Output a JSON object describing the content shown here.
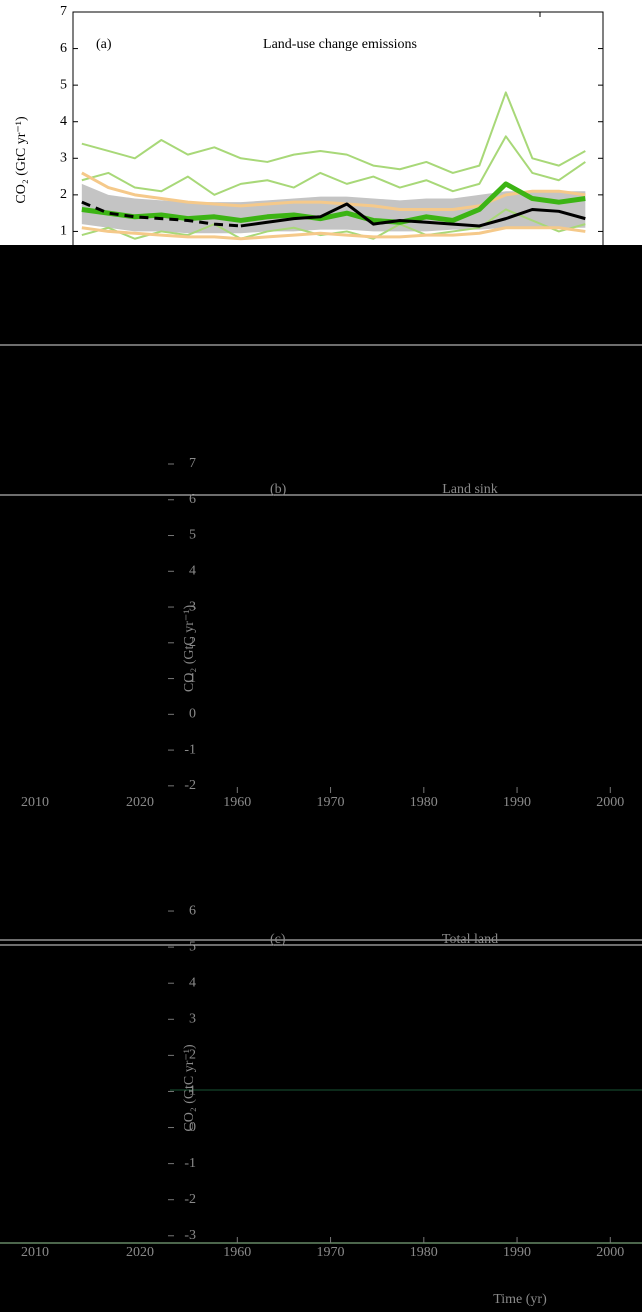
{
  "chart_data": [
    {
      "type": "line",
      "label": "(a)",
      "title": "Land-use change emissions",
      "ylabel": "CO₂ (GtC yr⁻¹)",
      "x": [
        1960,
        1963,
        1966,
        1969,
        1972,
        1975,
        1978,
        1981,
        1984,
        1987,
        1990,
        1993,
        1996,
        1999,
        2002,
        2005,
        2008,
        2011,
        2014,
        2017
      ],
      "xlim": [
        1959,
        2019
      ],
      "ylim": [
        0,
        7
      ],
      "yticks": [
        1,
        2,
        3,
        4,
        5,
        6,
        7
      ],
      "band": {
        "color": "#c4c4c4",
        "lower": [
          1.2,
          1.1,
          1.0,
          1.0,
          0.95,
          0.95,
          0.95,
          1.0,
          1.0,
          1.05,
          1.05,
          1.0,
          1.0,
          1.0,
          1.05,
          1.05,
          1.1,
          1.1,
          1.1,
          1.1
        ],
        "upper": [
          2.3,
          2.0,
          1.9,
          1.85,
          1.8,
          1.8,
          1.8,
          1.85,
          1.9,
          1.95,
          1.95,
          1.9,
          1.85,
          1.9,
          1.9,
          2.0,
          2.1,
          2.1,
          2.1,
          2.1
        ]
      },
      "series": [
        {
          "color": "#a8d878",
          "width": 2,
          "values": [
            3.4,
            3.2,
            3.0,
            3.5,
            3.1,
            3.3,
            3.0,
            2.9,
            3.1,
            3.2,
            3.1,
            2.8,
            2.7,
            2.9,
            2.6,
            2.8,
            4.8,
            3.0,
            2.8,
            3.2
          ]
        },
        {
          "color": "#a8d878",
          "width": 2,
          "values": [
            2.4,
            2.6,
            2.2,
            2.1,
            2.5,
            2.0,
            2.3,
            2.4,
            2.2,
            2.6,
            2.3,
            2.5,
            2.2,
            2.4,
            2.1,
            2.3,
            3.6,
            2.6,
            2.4,
            2.9
          ]
        },
        {
          "color": "#a8d878",
          "width": 2,
          "values": [
            0.9,
            1.1,
            0.8,
            1.0,
            0.9,
            1.2,
            0.8,
            1.0,
            1.1,
            0.9,
            1.0,
            0.8,
            1.2,
            0.9,
            1.0,
            1.1,
            1.6,
            1.3,
            1.0,
            1.2
          ]
        },
        {
          "color": "#f5c98a",
          "width": 3,
          "values": [
            2.6,
            2.2,
            2.0,
            1.9,
            1.8,
            1.75,
            1.7,
            1.75,
            1.8,
            1.8,
            1.75,
            1.7,
            1.6,
            1.6,
            1.6,
            1.7,
            2.0,
            2.1,
            2.1,
            2.0
          ]
        },
        {
          "color": "#f5c98a",
          "width": 3,
          "values": [
            1.1,
            1.0,
            0.95,
            0.9,
            0.85,
            0.85,
            0.8,
            0.85,
            0.9,
            0.95,
            0.9,
            0.85,
            0.85,
            0.9,
            0.9,
            0.95,
            1.1,
            1.1,
            1.1,
            1.0
          ]
        },
        {
          "color": "#3cb414",
          "width": 5,
          "values": [
            1.6,
            1.5,
            1.4,
            1.45,
            1.35,
            1.4,
            1.3,
            1.4,
            1.45,
            1.35,
            1.5,
            1.3,
            1.25,
            1.4,
            1.3,
            1.6,
            2.3,
            1.9,
            1.8,
            1.9
          ]
        },
        {
          "color": "#000000",
          "width": 3,
          "dash": true,
          "values": [
            1.8,
            1.5,
            1.4,
            1.35,
            1.3,
            1.2,
            1.15,
            null,
            null,
            null,
            null,
            null,
            null,
            null,
            null,
            null,
            null,
            null,
            null,
            null
          ]
        },
        {
          "color": "#000000",
          "width": 3,
          "values": [
            null,
            null,
            null,
            null,
            null,
            null,
            1.15,
            1.25,
            1.35,
            1.4,
            1.75,
            1.2,
            1.3,
            1.25,
            1.2,
            1.15,
            1.35,
            1.6,
            1.55,
            1.35
          ]
        }
      ]
    },
    {
      "type": "frame",
      "label": "(b)",
      "title": "Land sink",
      "ylabel": "CO₂ (GtC yr⁻¹)",
      "xlim": [
        1957.5,
        2003.4
      ],
      "xticks": [
        1960,
        1970,
        1980,
        1990,
        2000
      ],
      "xticks_left": [
        2010,
        2020
      ],
      "ylim": [
        -2.2,
        7
      ],
      "yticks": [
        7,
        6,
        5,
        4,
        3,
        2,
        1,
        0,
        -1,
        -2
      ]
    },
    {
      "type": "frame",
      "label": "(c)",
      "title": "Total land",
      "ylabel": "CO₂ (GtC yr⁻¹)",
      "xlabel": "Time (yr)",
      "xlim": [
        1957.5,
        2003.4
      ],
      "xticks": [
        1960,
        1970,
        1980,
        1990,
        2000
      ],
      "xticks_left": [
        2010,
        2020
      ],
      "ylim": [
        -3.2,
        6.5
      ],
      "yticks": [
        6,
        5,
        4,
        3,
        2,
        1,
        0,
        -1,
        -2,
        -3
      ]
    }
  ]
}
